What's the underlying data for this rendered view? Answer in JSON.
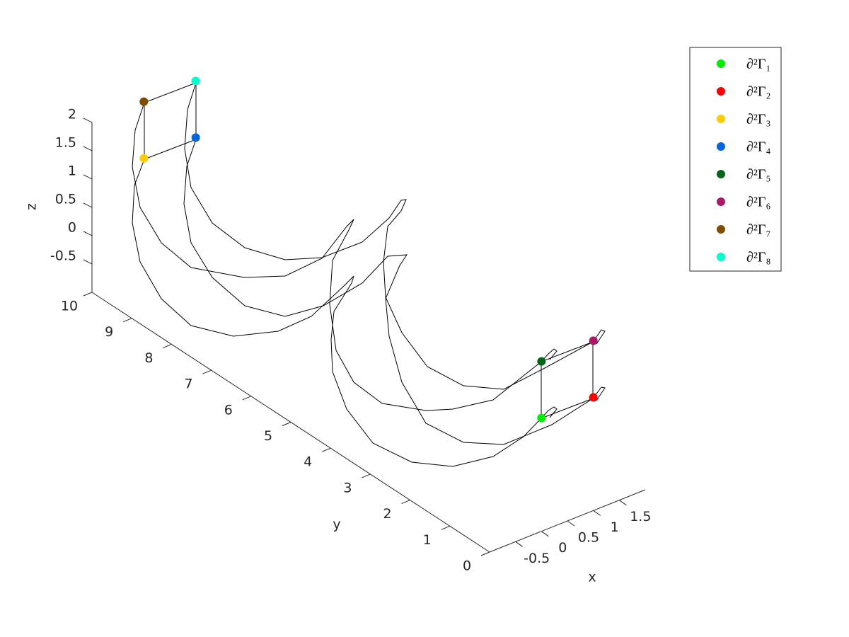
{
  "chart_data": {
    "type": "scatter3",
    "xlabel": "x",
    "ylabel": "y",
    "zlabel": "z",
    "xlim": [
      -1,
      2
    ],
    "ylim": [
      0,
      10
    ],
    "zlim": [
      -1,
      2
    ],
    "xticks": [
      -0.5,
      0,
      0.5,
      1,
      1.5
    ],
    "yticks": [
      0,
      1,
      2,
      3,
      4,
      5,
      6,
      7,
      8,
      9,
      10
    ],
    "zticks": [
      -0.5,
      0,
      0.5,
      1,
      1.5,
      2
    ],
    "legend": "northeast",
    "series": [
      {
        "name": "∂²Γ₁",
        "color": "#00ee00",
        "x": [
          0
        ],
        "y": [
          0
        ],
        "z": [
          1
        ]
      },
      {
        "name": "∂²Γ₂",
        "color": "#ff0000",
        "x": [
          1
        ],
        "y": [
          0
        ],
        "z": [
          1
        ]
      },
      {
        "name": "∂²Γ₃",
        "color": "#ffcc00",
        "x": [
          0
        ],
        "y": [
          10
        ],
        "z": [
          1
        ]
      },
      {
        "name": "∂²Γ₄",
        "color": "#0066dd",
        "x": [
          1
        ],
        "y": [
          10
        ],
        "z": [
          1
        ]
      },
      {
        "name": "∂²Γ₅",
        "color": "#006618",
        "x": [
          0
        ],
        "y": [
          0
        ],
        "z": [
          2
        ]
      },
      {
        "name": "∂²Γ₆",
        "color": "#aa1966",
        "x": [
          1
        ],
        "y": [
          0
        ],
        "z": [
          2
        ]
      },
      {
        "name": "∂²Γ₇",
        "color": "#7f4c00",
        "x": [
          0
        ],
        "y": [
          10
        ],
        "z": [
          2
        ]
      },
      {
        "name": "∂²Γ₈",
        "color": "#00ffcc",
        "x": [
          1
        ],
        "y": [
          10
        ],
        "z": [
          2
        ]
      }
    ]
  }
}
